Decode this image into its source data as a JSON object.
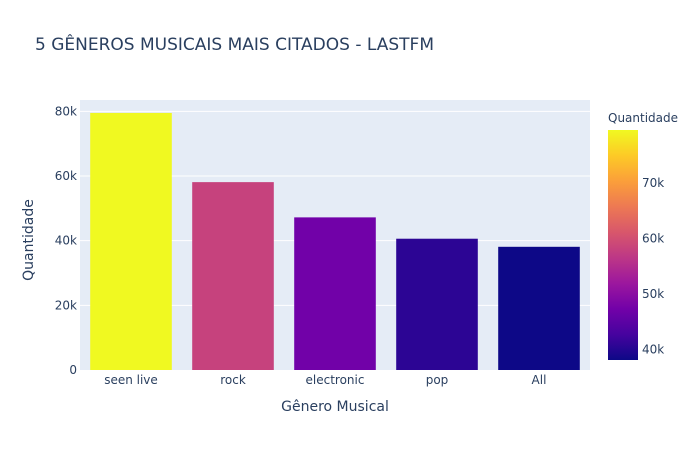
{
  "chart_data": {
    "type": "bar",
    "title": "5 GÊNEROS MUSICAIS MAIS CITADOS - LASTFM",
    "xlabel": "Gênero Musical",
    "ylabel": "Quantidade",
    "categories": [
      "seen live",
      "rock",
      "electronic",
      "pop",
      "All"
    ],
    "values": [
      79500,
      58100,
      47200,
      40600,
      38100
    ],
    "ylim": [
      0,
      83500
    ],
    "y_ticks": [
      0,
      20000,
      40000,
      60000,
      80000
    ],
    "y_tick_labels": [
      "0",
      "20k",
      "40k",
      "60k",
      "80k"
    ],
    "grid": true,
    "colorbar": {
      "title": "Quantidade",
      "range": [
        38100,
        79500
      ],
      "ticks": [
        40000,
        50000,
        60000,
        70000
      ],
      "tick_labels": [
        "40k",
        "50k",
        "60k",
        "70k"
      ],
      "colorscale": [
        "#0d0887",
        "#46039f",
        "#7201a8",
        "#9c179e",
        "#bd3786",
        "#d8576b",
        "#ed7953",
        "#fb9f3a",
        "#fdca26",
        "#f0f921"
      ]
    },
    "plot_background": "#e5ecf6"
  }
}
